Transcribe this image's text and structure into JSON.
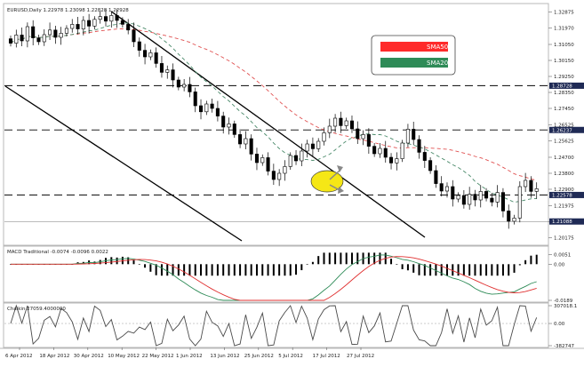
{
  "chart_data": [
    {
      "type": "candlestick",
      "title": "EURUSD,Daily  1.22978 1.23098 1.22828 1.22928",
      "price_ticks": [
        "1.32875",
        "1.31970",
        "1.31050",
        "1.30150",
        "1.29250",
        "1.28350",
        "1.27450",
        "1.26525",
        "1.25625",
        "1.24700",
        "1.23800",
        "1.22900",
        "1.21975",
        "1.21075",
        "1.20175"
      ],
      "price_range": [
        1.1985,
        1.3325
      ],
      "marked_prices": [
        {
          "label": "1.28728",
          "value": 1.28728,
          "color": "#1f2a55"
        },
        {
          "label": "1.26237",
          "value": 1.26237,
          "color": "#1f2a55"
        },
        {
          "label": "1.22578",
          "value": 1.22578,
          "color": "#1f2a55"
        },
        {
          "label": "1.21088",
          "value": 1.21088,
          "color": "#1f2a55"
        }
      ],
      "legend": [
        {
          "label": "SMA50",
          "color": "#ff2a2a"
        },
        {
          "label": "SMA20",
          "color": "#2e8b57"
        }
      ],
      "colors": {
        "up": "#ffffff",
        "down": "#000000",
        "sma50": "#e05050",
        "sma20": "#4a8a6a",
        "channel": "#000000",
        "highlight": "#f5e60a"
      },
      "candles_close": [
        1.3112,
        1.3158,
        1.3125,
        1.3205,
        1.3142,
        1.312,
        1.316,
        1.3186,
        1.3145,
        1.3168,
        1.3195,
        1.3218,
        1.3192,
        1.324,
        1.3208,
        1.3246,
        1.3262,
        1.3236,
        1.3268,
        1.324,
        1.3218,
        1.3186,
        1.312,
        1.3072,
        1.3035,
        1.3058,
        1.2998,
        1.2948,
        1.2962,
        1.2905,
        1.2865,
        1.288,
        1.2838,
        1.276,
        1.2726,
        1.277,
        1.2745,
        1.2702,
        1.264,
        1.2658,
        1.2598,
        1.2545,
        1.2575,
        1.2488,
        1.244,
        1.2468,
        1.2392,
        1.2345,
        1.238,
        1.2418,
        1.248,
        1.245,
        1.2505,
        1.2545,
        1.2518,
        1.256,
        1.2608,
        1.2645,
        1.269,
        1.2648,
        1.2675,
        1.263,
        1.2575,
        1.2598,
        1.2532,
        1.249,
        1.252,
        1.247,
        1.2438,
        1.2462,
        1.255,
        1.2628,
        1.257,
        1.2498,
        1.2452,
        1.2395,
        1.2322,
        1.228,
        1.2305,
        1.2235,
        1.2255,
        1.2205,
        1.2262,
        1.223,
        1.2278,
        1.224,
        1.2218,
        1.2272,
        1.2168,
        1.211,
        1.2128,
        1.2305,
        1.234,
        1.2278,
        1.2293
      ]
    },
    {
      "type": "bar",
      "title": "MACD Traditional -0.0074 -0.0096 0.0022",
      "ticks": [
        "0.0051",
        "0.00",
        "-0.0189"
      ],
      "range": [
        -0.0189,
        0.0085
      ],
      "colors": {
        "hist": "#000000",
        "macd": "#2e8b57",
        "signal": "#e03030"
      }
    },
    {
      "type": "line",
      "title": "Chaikin 27059.4000000",
      "ticks": [
        "307018.1",
        "0.00",
        "-382747"
      ],
      "range": [
        -382747,
        307018.1
      ],
      "color": "#4a4a4a"
    }
  ],
  "time_axis": [
    "6 Apr 2012",
    "18 Apr 2012",
    "30 Apr 2012",
    "10 May 2012",
    "22 May 2012",
    "1 Jun 2012",
    "13 Jun 2012",
    "25 Jun 2012",
    "5 Jul 2012",
    "17 Jul 2012",
    "27 Jul 2012"
  ]
}
